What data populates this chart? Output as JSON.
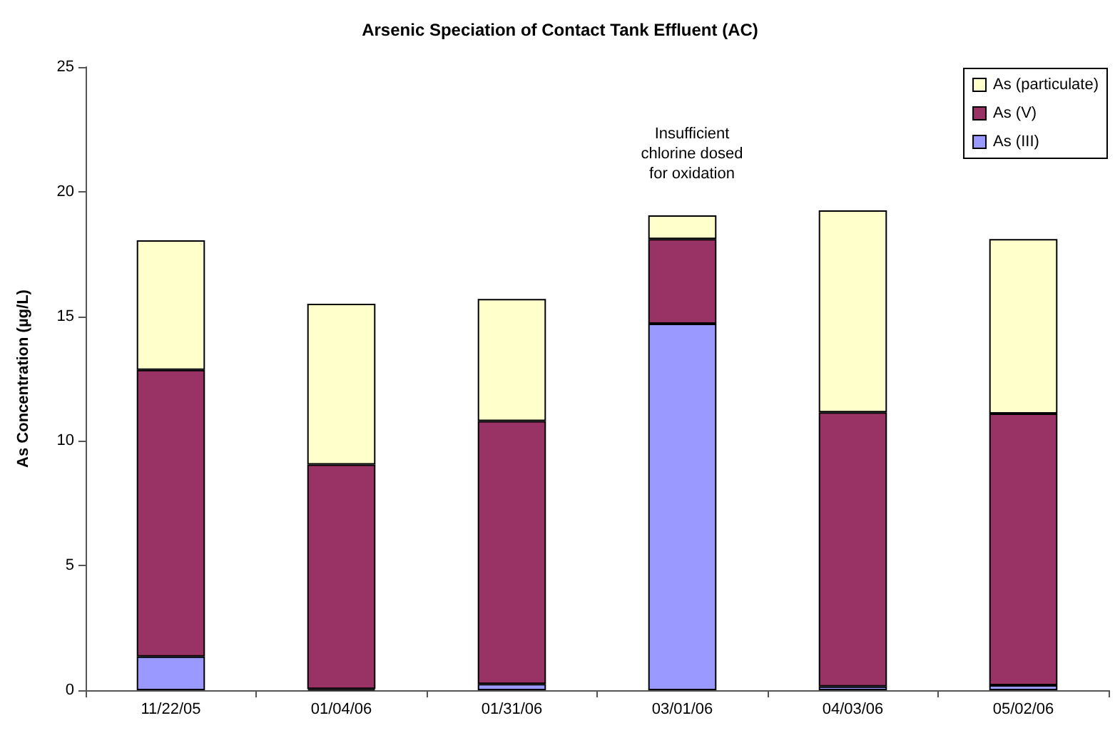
{
  "chart_data": {
    "type": "bar",
    "title": "Arsenic Speciation of Contact Tank Effluent (AC)",
    "ylabel": "As Concentration (µg/L)",
    "categories": [
      "11/22/05",
      "01/04/06",
      "01/31/06",
      "03/01/06",
      "04/03/06",
      "05/02/06"
    ],
    "stacked": true,
    "series": [
      {
        "name": "As (III)",
        "color": "#9999ff",
        "values": [
          1.35,
          0.05,
          0.25,
          14.7,
          0.15,
          0.2
        ]
      },
      {
        "name": "As (V)",
        "color": "#993366",
        "values": [
          11.5,
          9.0,
          10.55,
          3.4,
          11.0,
          10.9
        ]
      },
      {
        "name": "As (particulate)",
        "color": "#ffffcc",
        "values": [
          5.2,
          6.45,
          4.9,
          0.95,
          8.1,
          7.0
        ]
      }
    ],
    "ylim": [
      0,
      25
    ],
    "yticks": [
      0,
      5,
      10,
      15,
      20,
      25
    ],
    "grid": false,
    "legend": "top right",
    "annotations": [
      "Insufficient\nchlorine dosed\nfor oxidation"
    ]
  }
}
